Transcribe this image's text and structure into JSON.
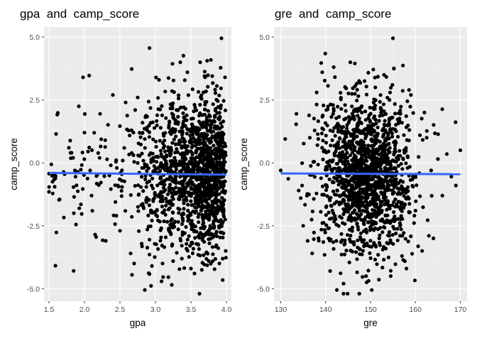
{
  "chart_data": [
    {
      "type": "scatter",
      "title": "gpa  and  camp_score",
      "xlabel": "gpa",
      "ylabel": "camp_score",
      "xlim": [
        1.43,
        4.07
      ],
      "ylim": [
        -5.5,
        5.4
      ],
      "xticks": [
        1.5,
        2.0,
        2.5,
        3.0,
        3.5,
        4.0
      ],
      "xtick_labels": [
        "1.5",
        "2.0",
        "2.5",
        "3.0",
        "3.5",
        "4.0"
      ],
      "yticks": [
        -5.0,
        -2.5,
        0.0,
        2.5,
        5.0
      ],
      "ytick_labels": [
        "-5.0",
        "-2.5",
        "0.0",
        "2.5",
        "5.0"
      ],
      "grid": true,
      "background": "#ebebeb",
      "point_color": "#000000",
      "trend_line": {
        "color": "#3366ff",
        "x": [
          1.5,
          4.0
        ],
        "y": [
          -0.4,
          -0.47
        ]
      },
      "point_cloud": {
        "n": 1500,
        "x_range": [
          1.5,
          4.0
        ],
        "y_range": [
          -5.2,
          4.95
        ],
        "x_center": 3.35,
        "y_center": -0.4
      },
      "highlight_points": [
        {
          "x": 3.93,
          "y": 4.95
        },
        {
          "x": 1.98,
          "y": 3.4
        },
        {
          "x": 1.92,
          "y": 2.25
        },
        {
          "x": 3.35,
          "y": 4.0
        },
        {
          "x": 3.63,
          "y": 4.0
        },
        {
          "x": 2.85,
          "y": -5.05
        },
        {
          "x": 3.62,
          "y": -5.2
        },
        {
          "x": 3.23,
          "y": -4.85
        },
        {
          "x": 2.67,
          "y": -4.45
        },
        {
          "x": 1.6,
          "y": 1.15
        },
        {
          "x": 1.5,
          "y": -1.15
        },
        {
          "x": 1.55,
          "y": -0.75
        },
        {
          "x": 1.58,
          "y": -0.95
        },
        {
          "x": 1.65,
          "y": -1.45
        },
        {
          "x": 1.72,
          "y": -0.45
        },
        {
          "x": 1.78,
          "y": 0.6
        },
        {
          "x": 1.85,
          "y": -2.0
        },
        {
          "x": 1.88,
          "y": -2.45
        },
        {
          "x": 1.95,
          "y": -1.65
        },
        {
          "x": 2.0,
          "y": 1.2
        },
        {
          "x": 2.05,
          "y": 0.45
        },
        {
          "x": 2.1,
          "y": -1.3
        },
        {
          "x": 2.15,
          "y": -2.85
        },
        {
          "x": 2.22,
          "y": 1.95
        },
        {
          "x": 2.3,
          "y": -3.1
        },
        {
          "x": 2.4,
          "y": 2.7
        },
        {
          "x": 2.45,
          "y": -2.1
        },
        {
          "x": 2.5,
          "y": -2.7
        },
        {
          "x": 2.58,
          "y": 2.4
        },
        {
          "x": 2.65,
          "y": -3.6
        },
        {
          "x": 2.7,
          "y": -4.0
        },
        {
          "x": 2.75,
          "y": 2.6
        },
        {
          "x": 2.95,
          "y": -4.1
        },
        {
          "x": 3.05,
          "y": 3.3
        },
        {
          "x": 3.1,
          "y": -4.0
        },
        {
          "x": 3.45,
          "y": 3.6
        },
        {
          "x": 3.5,
          "y": -4.2
        },
        {
          "x": 3.7,
          "y": 3.4
        },
        {
          "x": 3.8,
          "y": 3.45
        },
        {
          "x": 3.98,
          "y": 3.4
        },
        {
          "x": 3.75,
          "y": -3.9
        },
        {
          "x": 3.9,
          "y": -4.0
        },
        {
          "x": 3.99,
          "y": -3.5
        },
        {
          "x": 3.55,
          "y": -4.4
        }
      ]
    },
    {
      "type": "scatter",
      "title": "gre  and  camp_score",
      "xlabel": "gre",
      "ylabel": "camp_score",
      "xlim": [
        128.5,
        171.5
      ],
      "ylim": [
        -5.5,
        5.4
      ],
      "xticks": [
        130,
        140,
        150,
        160,
        170
      ],
      "xtick_labels": [
        "130",
        "140",
        "150",
        "160",
        "170"
      ],
      "yticks": [
        -5.0,
        -2.5,
        0.0,
        2.5,
        5.0
      ],
      "ytick_labels": [
        "-5.0",
        "-2.5",
        "0.0",
        "2.5",
        "5.0"
      ],
      "grid": true,
      "background": "#ebebeb",
      "point_color": "#000000",
      "trend_line": {
        "color": "#3366ff",
        "x": [
          130,
          170
        ],
        "y": [
          -0.42,
          -0.45
        ]
      },
      "point_cloud": {
        "n": 1500,
        "x_range": [
          130,
          170
        ],
        "y_range": [
          -5.2,
          4.95
        ],
        "x_center": 149.0,
        "y_center": -0.4
      },
      "highlight_points": [
        {
          "x": 155,
          "y": 4.95
        },
        {
          "x": 130,
          "y": -0.3
        },
        {
          "x": 131,
          "y": 0.95
        },
        {
          "x": 133.5,
          "y": 1.95
        },
        {
          "x": 134,
          "y": -1.1
        },
        {
          "x": 135,
          "y": -2.5
        },
        {
          "x": 136,
          "y": -3.1
        },
        {
          "x": 137,
          "y": -3.6
        },
        {
          "x": 138,
          "y": 2.8
        },
        {
          "x": 141,
          "y": -4.3
        },
        {
          "x": 142.5,
          "y": -5.05
        },
        {
          "x": 144,
          "y": -4.8
        },
        {
          "x": 145.5,
          "y": 4.0
        },
        {
          "x": 146.5,
          "y": 3.95
        },
        {
          "x": 147.5,
          "y": -5.2
        },
        {
          "x": 149,
          "y": -4.5
        },
        {
          "x": 153,
          "y": 3.5
        },
        {
          "x": 154.5,
          "y": -4.5
        },
        {
          "x": 158,
          "y": -4.2
        },
        {
          "x": 160,
          "y": -1.9
        },
        {
          "x": 161,
          "y": 1.1
        },
        {
          "x": 162,
          "y": 2.0
        },
        {
          "x": 163,
          "y": -2.9
        },
        {
          "x": 164,
          "y": -3.0
        },
        {
          "x": 165,
          "y": 0.15
        },
        {
          "x": 166,
          "y": -1.3
        },
        {
          "x": 167,
          "y": 0.35
        },
        {
          "x": 168,
          "y": -0.55
        },
        {
          "x": 169,
          "y": -0.9
        },
        {
          "x": 170,
          "y": 0.5
        },
        {
          "x": 163.5,
          "y": -0.3
        },
        {
          "x": 162.5,
          "y": 1.0
        },
        {
          "x": 161.5,
          "y": -3.5
        },
        {
          "x": 159,
          "y": 2.7
        },
        {
          "x": 157,
          "y": -3.7
        }
      ]
    }
  ]
}
